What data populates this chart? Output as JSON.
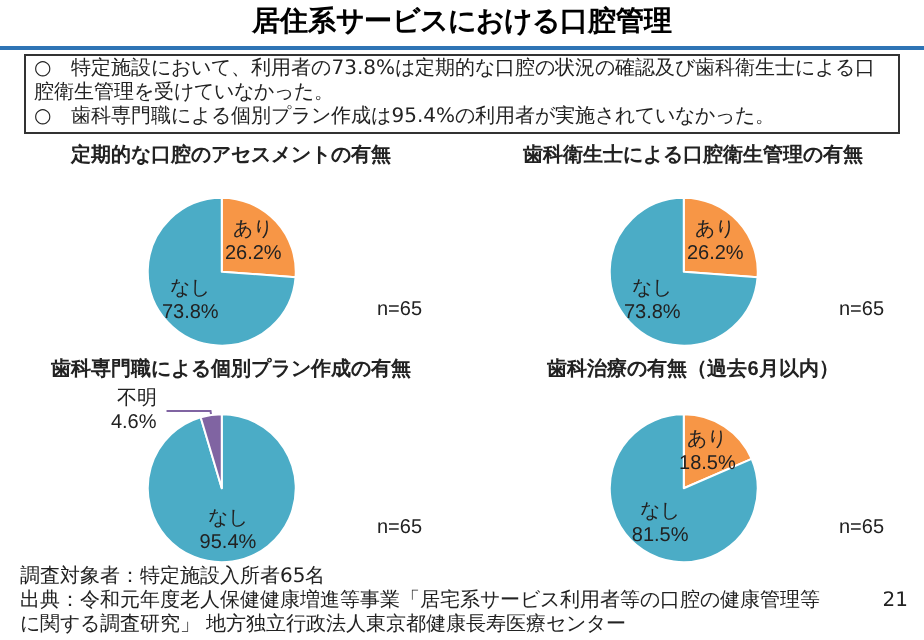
{
  "chart_data": [
    {
      "type": "other",
      "title": "居住系サービスにおける口腔管理",
      "annotations": [
        "○　特定施設において、利用者の73.8%は定期的な口腔の状況の確認及び歯科衛生士による口腔衛生管理を受けていなかった。",
        "○　歯科専門職による個別プラン作成は95.4%の利用者が実施されていなかった。",
        "調査対象者：特定施設入所者65名",
        "出典：令和元年度老人保健健康増進等事業「居宅系サービス利用者等の口腔の健康管理等に関する調査研究」 地方独立行政法人東京都健康長寿医療センター",
        "21"
      ]
    },
    {
      "type": "pie",
      "title": "定期的な口腔のアセスメントの有無",
      "categories": [
        "あり",
        "なし"
      ],
      "values": [
        26.2,
        73.8
      ],
      "value_labels": [
        "26.2%",
        "73.8%"
      ],
      "colors": [
        "#f79646",
        "#4bacc6"
      ],
      "annotations": [
        "n=65"
      ]
    },
    {
      "type": "pie",
      "title": "歯科衛生士による口腔衛生管理の有無",
      "categories": [
        "あり",
        "なし"
      ],
      "values": [
        26.2,
        73.8
      ],
      "value_labels": [
        "26.2%",
        "73.8%"
      ],
      "colors": [
        "#f79646",
        "#4bacc6"
      ],
      "annotations": [
        "n=65"
      ]
    },
    {
      "type": "pie",
      "title": "歯科専門職による個別プラン作成の有無",
      "categories": [
        "なし",
        "不明"
      ],
      "values": [
        95.4,
        4.6
      ],
      "value_labels": [
        "95.4%",
        "4.6%"
      ],
      "colors": [
        "#4bacc6",
        "#8064a2"
      ],
      "annotations": [
        "n=65"
      ]
    },
    {
      "type": "pie",
      "title": "歯科治療の有無（過去6月以内）",
      "categories": [
        "あり",
        "なし"
      ],
      "values": [
        18.5,
        81.5
      ],
      "value_labels": [
        "18.5%",
        "81.5%"
      ],
      "colors": [
        "#f79646",
        "#4bacc6"
      ],
      "annotations": [
        "n=65"
      ]
    }
  ]
}
